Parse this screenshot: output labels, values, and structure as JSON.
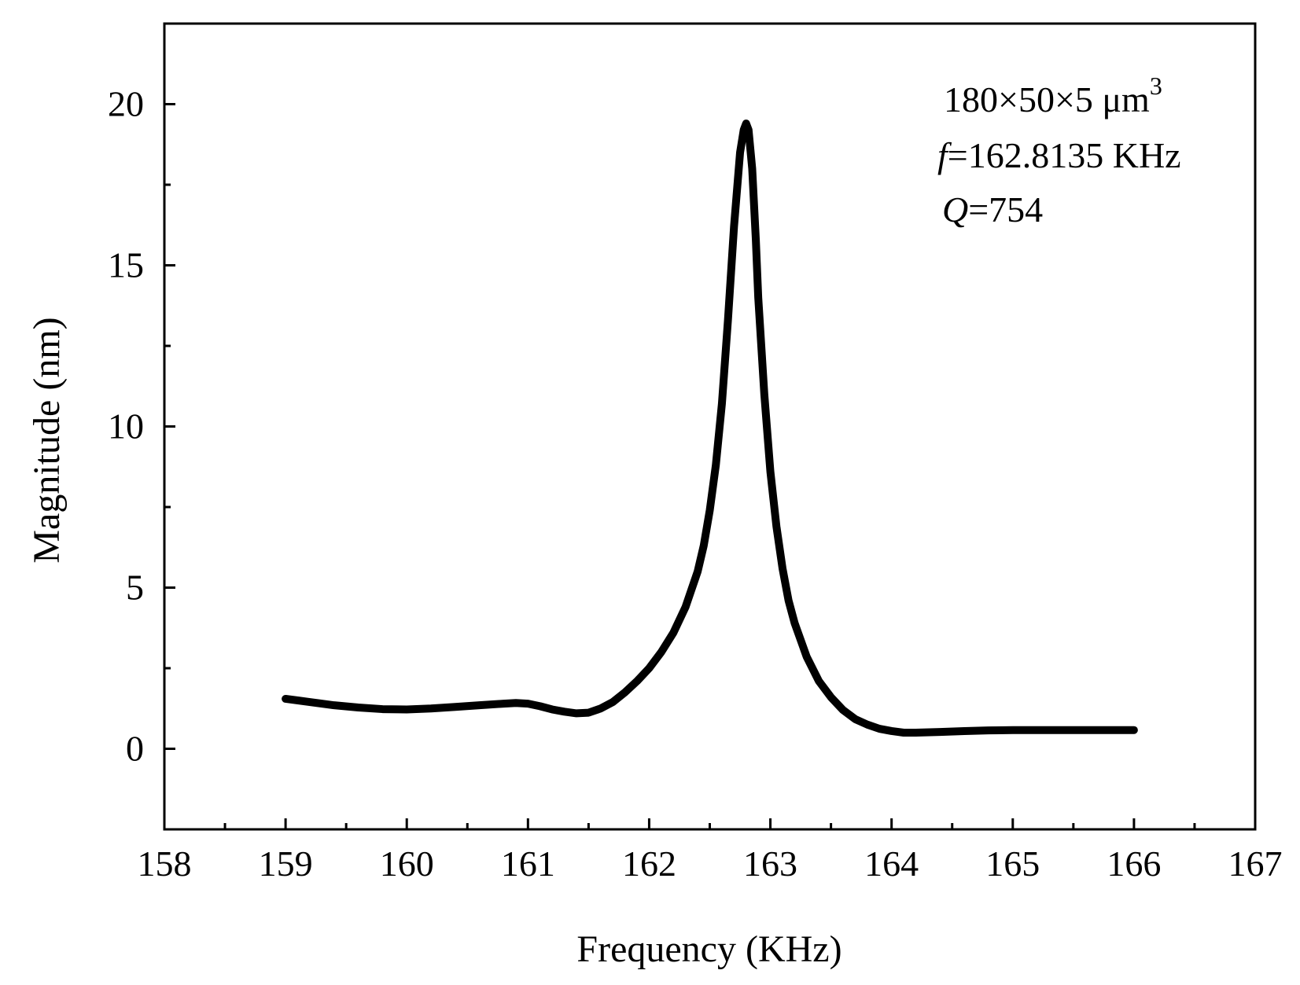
{
  "chart_data": {
    "type": "line",
    "xlabel": "Frequency (KHz)",
    "ylabel": "Magnitude (nm)",
    "xlim": [
      158,
      167
    ],
    "ylim": [
      -2.5,
      22.5
    ],
    "x_ticks": [
      158,
      159,
      160,
      161,
      162,
      163,
      164,
      165,
      166,
      167
    ],
    "y_ticks": [
      0,
      5,
      10,
      15,
      20
    ],
    "grid": false,
    "annotations": {
      "dims_text": "180×50×5 μm",
      "dims_superscript": "3",
      "freq_symbol": "f",
      "freq_value": "=162.8135 KHz",
      "q_symbol": "Q",
      "q_value": "=754"
    },
    "series": [
      {
        "color": "#000000",
        "x": [
          159.0,
          159.2,
          159.4,
          159.6,
          159.8,
          160.0,
          160.2,
          160.4,
          160.6,
          160.8,
          160.9,
          161.0,
          161.1,
          161.2,
          161.3,
          161.4,
          161.5,
          161.6,
          161.7,
          161.8,
          161.9,
          162.0,
          162.1,
          162.2,
          162.3,
          162.4,
          162.45,
          162.5,
          162.55,
          162.6,
          162.65,
          162.7,
          162.75,
          162.78,
          162.8,
          162.82,
          162.85,
          162.88,
          162.9,
          162.95,
          163.0,
          163.05,
          163.1,
          163.15,
          163.2,
          163.3,
          163.4,
          163.5,
          163.6,
          163.7,
          163.8,
          163.9,
          164.0,
          164.1,
          164.2,
          164.4,
          164.6,
          164.8,
          165.0,
          165.2,
          165.4,
          165.6,
          165.8,
          166.0
        ],
        "y": [
          1.55,
          1.45,
          1.35,
          1.28,
          1.23,
          1.22,
          1.25,
          1.3,
          1.35,
          1.4,
          1.42,
          1.4,
          1.32,
          1.22,
          1.15,
          1.1,
          1.12,
          1.25,
          1.45,
          1.75,
          2.1,
          2.5,
          3.0,
          3.6,
          4.4,
          5.5,
          6.3,
          7.4,
          8.8,
          10.7,
          13.3,
          16.2,
          18.5,
          19.2,
          19.4,
          19.2,
          18.0,
          15.8,
          14.0,
          11.0,
          8.6,
          6.9,
          5.6,
          4.6,
          3.9,
          2.85,
          2.1,
          1.6,
          1.2,
          0.92,
          0.75,
          0.62,
          0.55,
          0.5,
          0.5,
          0.52,
          0.55,
          0.57,
          0.58,
          0.58,
          0.58,
          0.58,
          0.58,
          0.58
        ]
      }
    ]
  }
}
